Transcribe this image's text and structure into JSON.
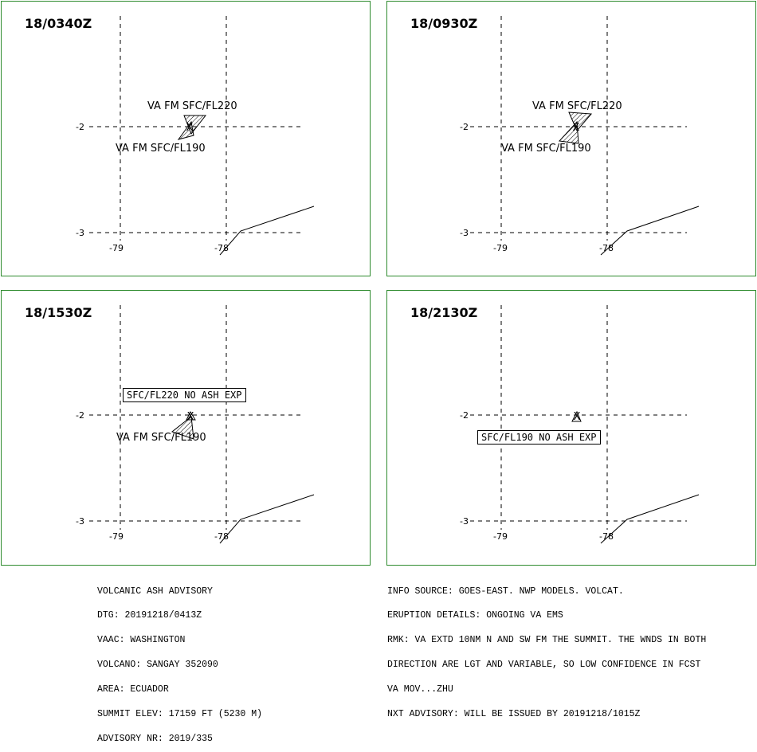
{
  "panels": [
    {
      "time": "18/0340Z",
      "labels": [
        "VA FM SFC/FL220",
        "VA FM SFC/FL190"
      ],
      "boxed_note": ""
    },
    {
      "time": "18/0930Z",
      "labels": [
        "VA FM SFC/FL220",
        "VA FM SFC/FL190"
      ],
      "boxed_note": ""
    },
    {
      "time": "18/1530Z",
      "labels": [
        "",
        "VA FM SFC/FL190"
      ],
      "boxed_note": "SFC/FL220 NO ASH EXP"
    },
    {
      "time": "18/2130Z",
      "labels": [
        "",
        ""
      ],
      "boxed_note": "SFC/FL190 NO ASH EXP"
    }
  ],
  "axes": {
    "lon_ticks": [
      "-79",
      "-78"
    ],
    "lat_ticks": [
      "-2",
      "-3"
    ]
  },
  "advisory_left": [
    "VOLCANIC ASH ADVISORY",
    "DTG: 20191218/0413Z",
    "VAAC: WASHINGTON",
    "VOLCANO: SANGAY 352090",
    "AREA: ECUADOR",
    "SUMMIT ELEV: 17159 FT (5230 M)",
    "ADVISORY NR: 2019/335"
  ],
  "advisory_right": [
    "INFO SOURCE: GOES-EAST. NWP MODELS. VOLCAT.",
    "ERUPTION DETAILS: ONGOING VA EMS",
    "RMK: VA EXTD 10NM N AND SW FM THE SUMMIT. THE WNDS IN BOTH",
    "DIRECTION ARE LGT AND VARIABLE, SO LOW CONFIDENCE IN FCST",
    "VA MOV...ZHU",
    "NXT ADVISORY: WILL BE ISSUED BY 20191218/1015Z"
  ],
  "colors": {
    "panel_border": "#2e8b2e",
    "grid": "#000000"
  }
}
